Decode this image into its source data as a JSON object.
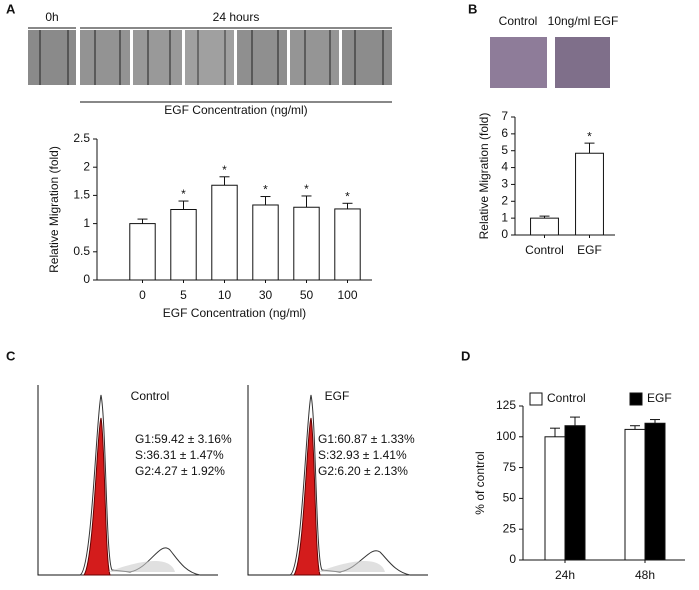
{
  "panels": {
    "a": "A",
    "b": "B",
    "c": "C",
    "d": "D"
  },
  "panel_a": {
    "time_labels": [
      "0h",
      "24 hours"
    ],
    "concentrations": [
      "0",
      "5",
      "10",
      "30",
      "50",
      "100"
    ],
    "axis_label": "EGF Concentration (ng/ml)"
  },
  "panel_b": {
    "image_labels": [
      "Control",
      "10ng/ml  EGF"
    ]
  },
  "panel_c": {
    "flow": [
      {
        "title": "Control",
        "lines": [
          "G1:59.42 ± 3.16%",
          "S:36.31 ± 1.47%",
          "G2:4.27 ± 1.92%"
        ]
      },
      {
        "title": "EGF",
        "lines": [
          "G1:60.87 ± 1.33%",
          "S:32.93 ± 1.41%",
          "G2:6.20 ± 2.13%"
        ]
      }
    ]
  },
  "chart_data": [
    {
      "type": "bar",
      "ylabel": "Relative  Migration (fold)",
      "xlabel": "EGF Concentration (ng/ml)",
      "categories": [
        "0",
        "5",
        "10",
        "30",
        "50",
        "100"
      ],
      "values": [
        1.0,
        1.25,
        1.68,
        1.33,
        1.29,
        1.26
      ],
      "errors": [
        0.08,
        0.15,
        0.15,
        0.15,
        0.2,
        0.1
      ],
      "color": "#ffffff",
      "ylim": [
        0,
        2.5
      ],
      "yticks": [
        0,
        0.5,
        1,
        1.5,
        2,
        2.5
      ],
      "annotations": [
        {
          "x": "5",
          "text": "*"
        },
        {
          "x": "10",
          "text": "*"
        },
        {
          "x": "30",
          "text": "*"
        },
        {
          "x": "50",
          "text": "*"
        },
        {
          "x": "100",
          "text": "*"
        }
      ]
    },
    {
      "type": "bar",
      "ylabel": "Relative Migration (fold)",
      "categories": [
        "Control",
        "EGF"
      ],
      "values": [
        1.0,
        4.85
      ],
      "errors": [
        0.12,
        0.6
      ],
      "color": "#ffffff",
      "ylim": [
        0,
        7
      ],
      "yticks": [
        0,
        1,
        2,
        3,
        4,
        5,
        6,
        7
      ],
      "annotations": [
        {
          "x": "EGF",
          "text": "*"
        }
      ]
    },
    {
      "type": "bar",
      "ylabel": "% of control",
      "categories": [
        "24h",
        "48h"
      ],
      "series": [
        {
          "name": "Control",
          "color": "#ffffff",
          "values": [
            100,
            106
          ],
          "errors": [
            7,
            3
          ]
        },
        {
          "name": "EGF",
          "color": "#000000",
          "values": [
            109,
            111
          ],
          "errors": [
            7,
            3
          ]
        }
      ],
      "ylim": [
        0,
        125
      ],
      "yticks": [
        0,
        25,
        50,
        75,
        100,
        125
      ],
      "legend": "top"
    }
  ]
}
